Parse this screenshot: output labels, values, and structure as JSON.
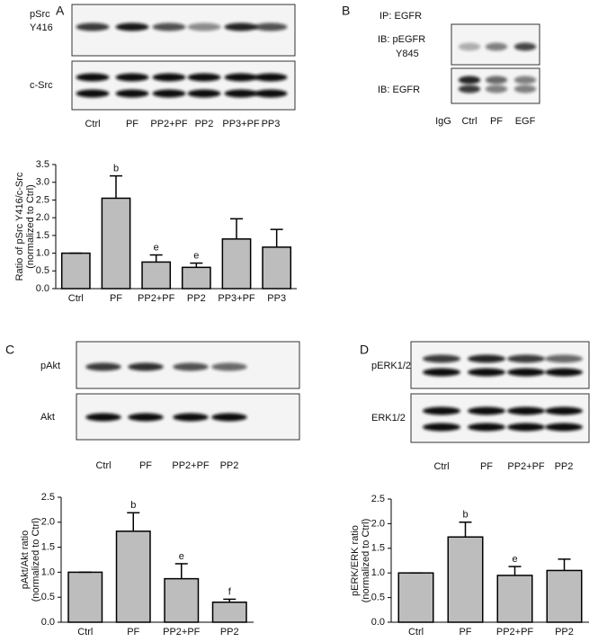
{
  "panels": [
    {
      "letter": "A",
      "blot_rows": [
        [
          "pSrc",
          "Y416"
        ],
        [
          "c-Src"
        ]
      ],
      "lanes": [
        "Ctrl",
        "PF",
        "PP2+PF",
        "PP2",
        "PP3+PF",
        "PP3"
      ]
    },
    {
      "letter": "B",
      "header": "IP: EGFR",
      "blot_rows": [
        [
          "IB: pEGFR",
          "Y845"
        ],
        [
          "IB: EGFR"
        ]
      ],
      "lanes": [
        "IgG",
        "Ctrl",
        "PF",
        "EGF"
      ]
    },
    {
      "letter": "C",
      "blot_rows": [
        [
          "pAkt"
        ],
        [
          "Akt"
        ]
      ],
      "lanes": [
        "Ctrl",
        "PF",
        "PP2+PF",
        "PP2"
      ]
    },
    {
      "letter": "D",
      "blot_rows": [
        [
          "pERK1/2"
        ],
        [
          "ERK1/2"
        ]
      ],
      "lanes": [
        "Ctrl",
        "PF",
        "PP2+PF",
        "PP2"
      ]
    }
  ],
  "chart_data": [
    {
      "type": "bar",
      "y_label": [
        "Ratio of pSrc Y416/c-Src",
        "(normalized to Ctrl)"
      ],
      "categories": [
        "Ctrl",
        "PF",
        "PP2+PF",
        "PP2",
        "PP3+PF",
        "PP3"
      ],
      "values": [
        1.0,
        2.55,
        0.75,
        0.6,
        1.4,
        1.17
      ],
      "errors": [
        0,
        0.63,
        0.2,
        0.12,
        0.57,
        0.5
      ],
      "letters": [
        null,
        "b",
        "e",
        "e",
        null,
        null
      ],
      "color": "#bdbdbd",
      "ylim": [
        0,
        3.5
      ],
      "yticks": [
        {
          "value": 0,
          "label": "0.0"
        },
        0.5,
        {
          "value": 1,
          "label": "1.0"
        },
        1.5,
        {
          "value": 2,
          "label": "2.0"
        },
        2.5,
        {
          "value": 3,
          "label": "3.0"
        },
        3.5
      ]
    },
    {
      "type": "bar",
      "y_label": [
        "pAkt/Akt ratio",
        "(normalized to Ctrl)"
      ],
      "categories": [
        "Ctrl",
        "PF",
        "PP2+PF",
        "PP2"
      ],
      "values": [
        1.0,
        1.82,
        0.87,
        0.4
      ],
      "errors": [
        0,
        0.37,
        0.3,
        0.06
      ],
      "letters": [
        null,
        "b",
        "e",
        "f"
      ],
      "color": "#bdbdbd",
      "ylim": [
        0,
        2.5
      ],
      "yticks": [
        {
          "value": 0,
          "label": "0.0"
        },
        0.5,
        {
          "value": 1,
          "label": "1.0"
        },
        1.5,
        {
          "value": 2,
          "label": "2.0"
        },
        2.5
      ]
    },
    {
      "type": "bar",
      "y_label": [
        "pERK/ERK ratio",
        "(normalized to Ctrl)"
      ],
      "categories": [
        "Ctrl",
        "PF",
        "PP2+PF",
        "PP2"
      ],
      "values": [
        1.0,
        1.73,
        0.95,
        1.05
      ],
      "errors": [
        0,
        0.3,
        0.18,
        0.23
      ],
      "letters": [
        null,
        "b",
        "e",
        null
      ],
      "color": "#bdbdbd",
      "ylim": [
        0,
        2.5
      ],
      "yticks": [
        {
          "value": 0,
          "label": "0.0"
        },
        0.5,
        {
          "value": 1,
          "label": "1.0"
        },
        1.5,
        {
          "value": 2,
          "label": "2.0"
        },
        2.5
      ]
    }
  ]
}
